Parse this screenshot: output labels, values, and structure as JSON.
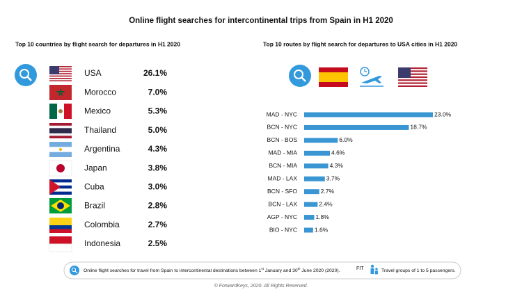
{
  "title": "Online flight searches for intercontinental trips from Spain in H1 2020",
  "countries": {
    "heading": "Top 10 countries by flight search for departures in H1 2020",
    "rows": [
      {
        "name": "USA",
        "share": "26.1%"
      },
      {
        "name": "Morocco",
        "share": "7.0%"
      },
      {
        "name": "Mexico",
        "share": "5.3%"
      },
      {
        "name": "Thailand",
        "share": "5.0%"
      },
      {
        "name": "Argentina",
        "share": "4.3%"
      },
      {
        "name": "Japan",
        "share": "3.8%"
      },
      {
        "name": "Cuba",
        "share": "3.0%"
      },
      {
        "name": "Brazil",
        "share": "2.8%"
      },
      {
        "name": "Colombia",
        "share": "2.7%"
      },
      {
        "name": "Indonesia",
        "share": "2.5%"
      }
    ]
  },
  "chart_data": {
    "type": "bar",
    "orientation": "horizontal",
    "title": "Top 10 routes by flight search for departures to USA cities in H1 2020",
    "categories": [
      "MAD - NYC",
      "BCN - NYC",
      "BCN - BOS",
      "MAD - MIA",
      "BCN - MIA",
      "MAD - LAX",
      "BCN - SFO",
      "BCN - LAX",
      "AGP - NYC",
      "BIO - NYC"
    ],
    "values": [
      23.0,
      18.7,
      6.0,
      4.6,
      4.3,
      3.7,
      2.7,
      2.4,
      1.8,
      1.6
    ],
    "value_labels": [
      "23.0%",
      "18.7%",
      "6.0%",
      "4.6%",
      "4.3%",
      "3.7%",
      "2.7%",
      "2.4%",
      "1.8%",
      "1.6%"
    ],
    "color": "#3a96d3"
  },
  "footer": {
    "note": [
      "Online flight searches for travel from Spain to intercontinental destinations between 1",
      "st",
      " January and 30",
      "th",
      " June 2020 (2020)."
    ],
    "fit": "FIT",
    "fit_note": "Travel groups of 1 to 5 passengers.",
    "copyright": "© ForwardKeys, 2020. All Rights Reserved."
  }
}
